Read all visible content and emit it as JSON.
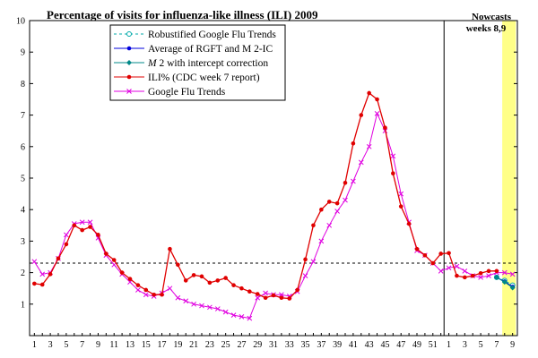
{
  "chart_data": {
    "type": "line",
    "title": "Percentage of visits for influenza-like illness (ILI) 2009",
    "nowcast_label": [
      "Nowcasts",
      "weeks 8,9"
    ],
    "ylim": [
      0,
      10
    ],
    "y_ticks": [
      "1",
      "2",
      "3",
      "4",
      "5",
      "6",
      "7",
      "8",
      "9",
      "10"
    ],
    "x_ticks": [
      "1",
      "3",
      "5",
      "7",
      "9",
      "11",
      "13",
      "15",
      "17",
      "19",
      "21",
      "23",
      "25",
      "27",
      "29",
      "31",
      "33",
      "35",
      "37",
      "39",
      "41",
      "43",
      "45",
      "47",
      "49",
      "51",
      "1",
      "3",
      "5",
      "7",
      "9"
    ],
    "x_tick_weeks": [
      1,
      3,
      5,
      7,
      9,
      11,
      13,
      15,
      17,
      19,
      21,
      23,
      25,
      27,
      29,
      31,
      33,
      35,
      37,
      39,
      41,
      43,
      45,
      47,
      49,
      51,
      53,
      55,
      57,
      59,
      61
    ],
    "year_divider_after_week": 52.4,
    "nowcast_band": [
      59.7,
      61.4
    ],
    "threshold_line": 2.3,
    "series": [
      {
        "name": "ILI% (CDC week 7 report)",
        "color": "#e00000",
        "marker": "dot",
        "x": [
          1,
          2,
          3,
          4,
          5,
          6,
          7,
          8,
          9,
          10,
          11,
          12,
          13,
          14,
          15,
          16,
          17,
          18,
          19,
          20,
          21,
          22,
          23,
          24,
          25,
          26,
          27,
          28,
          29,
          30,
          31,
          32,
          33,
          34,
          35,
          36,
          37,
          38,
          39,
          40,
          41,
          42,
          43,
          44,
          45,
          46,
          47,
          48,
          49,
          50,
          51,
          52,
          53,
          54,
          55,
          56,
          57,
          58,
          59
        ],
        "values": [
          1.65,
          1.62,
          1.95,
          2.45,
          2.9,
          3.5,
          3.35,
          3.45,
          3.2,
          2.6,
          2.4,
          2.0,
          1.8,
          1.6,
          1.45,
          1.3,
          1.3,
          2.75,
          2.25,
          1.75,
          1.92,
          1.88,
          1.68,
          1.75,
          1.83,
          1.6,
          1.5,
          1.4,
          1.32,
          1.2,
          1.28,
          1.2,
          1.18,
          1.45,
          2.42,
          3.5,
          4.0,
          4.25,
          4.2,
          4.85,
          6.1,
          7.0,
          7.7,
          7.5,
          6.6,
          5.15,
          4.1,
          3.55,
          2.75,
          2.55,
          2.3,
          2.6,
          2.62,
          1.9,
          1.85,
          1.9,
          1.98,
          2.05,
          2.05
        ]
      },
      {
        "name": "Google Flu Trends",
        "color": "#e000e0",
        "marker": "x",
        "x": [
          1,
          2,
          3,
          4,
          5,
          6,
          7,
          8,
          9,
          10,
          11,
          12,
          13,
          14,
          15,
          16,
          17,
          18,
          19,
          20,
          21,
          22,
          23,
          24,
          25,
          26,
          27,
          28,
          29,
          30,
          31,
          32,
          33,
          34,
          35,
          36,
          37,
          38,
          39,
          40,
          41,
          42,
          43,
          44,
          45,
          46,
          47,
          48,
          49,
          50,
          51,
          52,
          53,
          54,
          55,
          56,
          57,
          58,
          59,
          60,
          61
        ],
        "values": [
          2.35,
          1.95,
          2.0,
          2.45,
          3.2,
          3.55,
          3.6,
          3.6,
          3.1,
          2.55,
          2.25,
          1.95,
          1.7,
          1.45,
          1.3,
          1.25,
          1.35,
          1.5,
          1.2,
          1.1,
          1.0,
          0.95,
          0.9,
          0.85,
          0.75,
          0.65,
          0.6,
          0.55,
          1.2,
          1.35,
          1.3,
          1.3,
          1.25,
          1.4,
          1.9,
          2.35,
          3.0,
          3.5,
          3.95,
          4.3,
          4.9,
          5.5,
          6.0,
          7.05,
          6.5,
          5.7,
          4.5,
          3.6,
          2.7,
          2.55,
          2.3,
          2.05,
          2.15,
          2.2,
          2.05,
          1.9,
          1.85,
          1.9,
          2.0,
          2.0,
          1.95
        ]
      },
      {
        "name": "Robustified Google Flu Trends",
        "color": "#00aaaa",
        "marker": "circle",
        "x": [
          59,
          60,
          61
        ],
        "values": [
          1.85,
          1.75,
          1.6
        ]
      },
      {
        "name": "Average of RGFT and M 2-IC",
        "color": "#0000dd",
        "marker": "dot",
        "x": [
          59,
          60,
          61
        ],
        "values": [
          1.85,
          1.72,
          1.55
        ]
      },
      {
        "name": "M 2 with intercept correction",
        "color": "#008888",
        "marker": "diamond",
        "x": [
          59,
          60,
          61
        ],
        "values": [
          1.85,
          1.7,
          1.52
        ]
      }
    ],
    "legend_entries": [
      {
        "prefix": "",
        "label": "Robustified Google Flu Trends",
        "color": "#00aaaa",
        "marker": "circle",
        "dash": "3,3"
      },
      {
        "prefix": "",
        "label": "Average of RGFT and M 2-IC",
        "color": "#0000dd",
        "marker": "dot",
        "dash": ""
      },
      {
        "prefix": "M",
        "label": " 2 with intercept correction",
        "color": "#008888",
        "marker": "diamond",
        "dash": ""
      },
      {
        "prefix": "",
        "label": "ILI% (CDC week 7 report)",
        "color": "#e00000",
        "marker": "dot",
        "dash": ""
      },
      {
        "prefix": "",
        "label": "Google Flu Trends",
        "color": "#e000e0",
        "marker": "x",
        "dash": ""
      }
    ],
    "legend_position": "top-left",
    "grid": false,
    "band_color": "#ffff88"
  }
}
